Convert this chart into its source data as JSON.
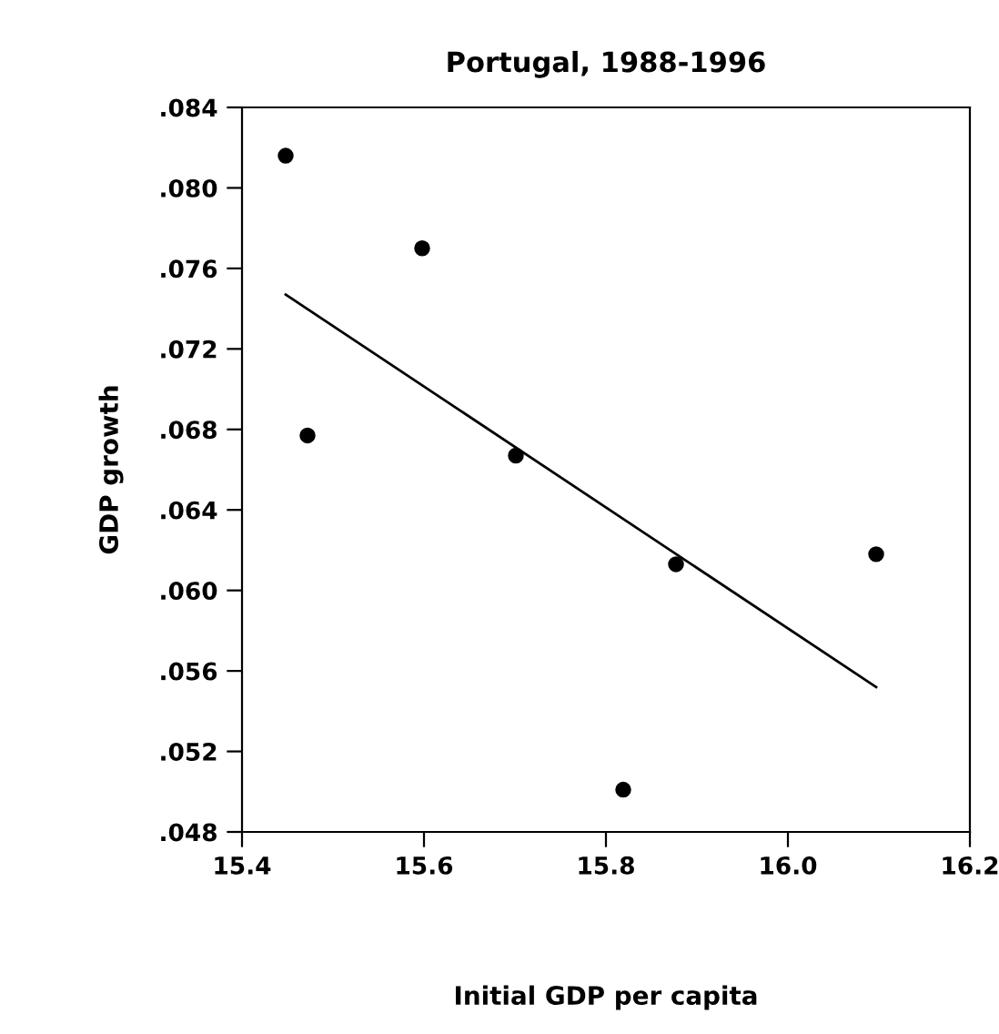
{
  "chart_data": {
    "type": "scatter",
    "title": "Portugal, 1988-1996",
    "xlabel": "Initial GDP per capita",
    "ylabel": "GDP growth",
    "xlim": [
      15.4,
      16.2
    ],
    "ylim": [
      0.048,
      0.084
    ],
    "xticks": [
      {
        "value": 15.4,
        "label": "15.4"
      },
      {
        "value": 15.6,
        "label": "15.6"
      },
      {
        "value": 15.8,
        "label": "15.8"
      },
      {
        "value": 16.0,
        "label": "16.0"
      },
      {
        "value": 16.2,
        "label": "16.2"
      }
    ],
    "yticks": [
      {
        "value": 0.048,
        "label": ".048"
      },
      {
        "value": 0.052,
        "label": ".052"
      },
      {
        "value": 0.056,
        "label": ".056"
      },
      {
        "value": 0.06,
        "label": ".060"
      },
      {
        "value": 0.064,
        "label": ".064"
      },
      {
        "value": 0.068,
        "label": ".068"
      },
      {
        "value": 0.072,
        "label": ".072"
      },
      {
        "value": 0.076,
        "label": ".076"
      },
      {
        "value": 0.08,
        "label": ".080"
      },
      {
        "value": 0.084,
        "label": ".084"
      }
    ],
    "grid": false,
    "legend": false,
    "series": [
      {
        "color": "#000000",
        "marker": "circle",
        "x": [
          15.448,
          15.598,
          15.472,
          15.701,
          15.877,
          16.097,
          15.819
        ],
        "values": [
          0.0816,
          0.077,
          0.0677,
          0.0667,
          0.0613,
          0.0618,
          0.0501
        ]
      },
      {
        "type": "line",
        "color": "#000000",
        "marker": "none",
        "line_style": "solid",
        "x": [
          15.448,
          16.097
        ],
        "values": [
          0.0747,
          0.0552
        ]
      }
    ]
  }
}
